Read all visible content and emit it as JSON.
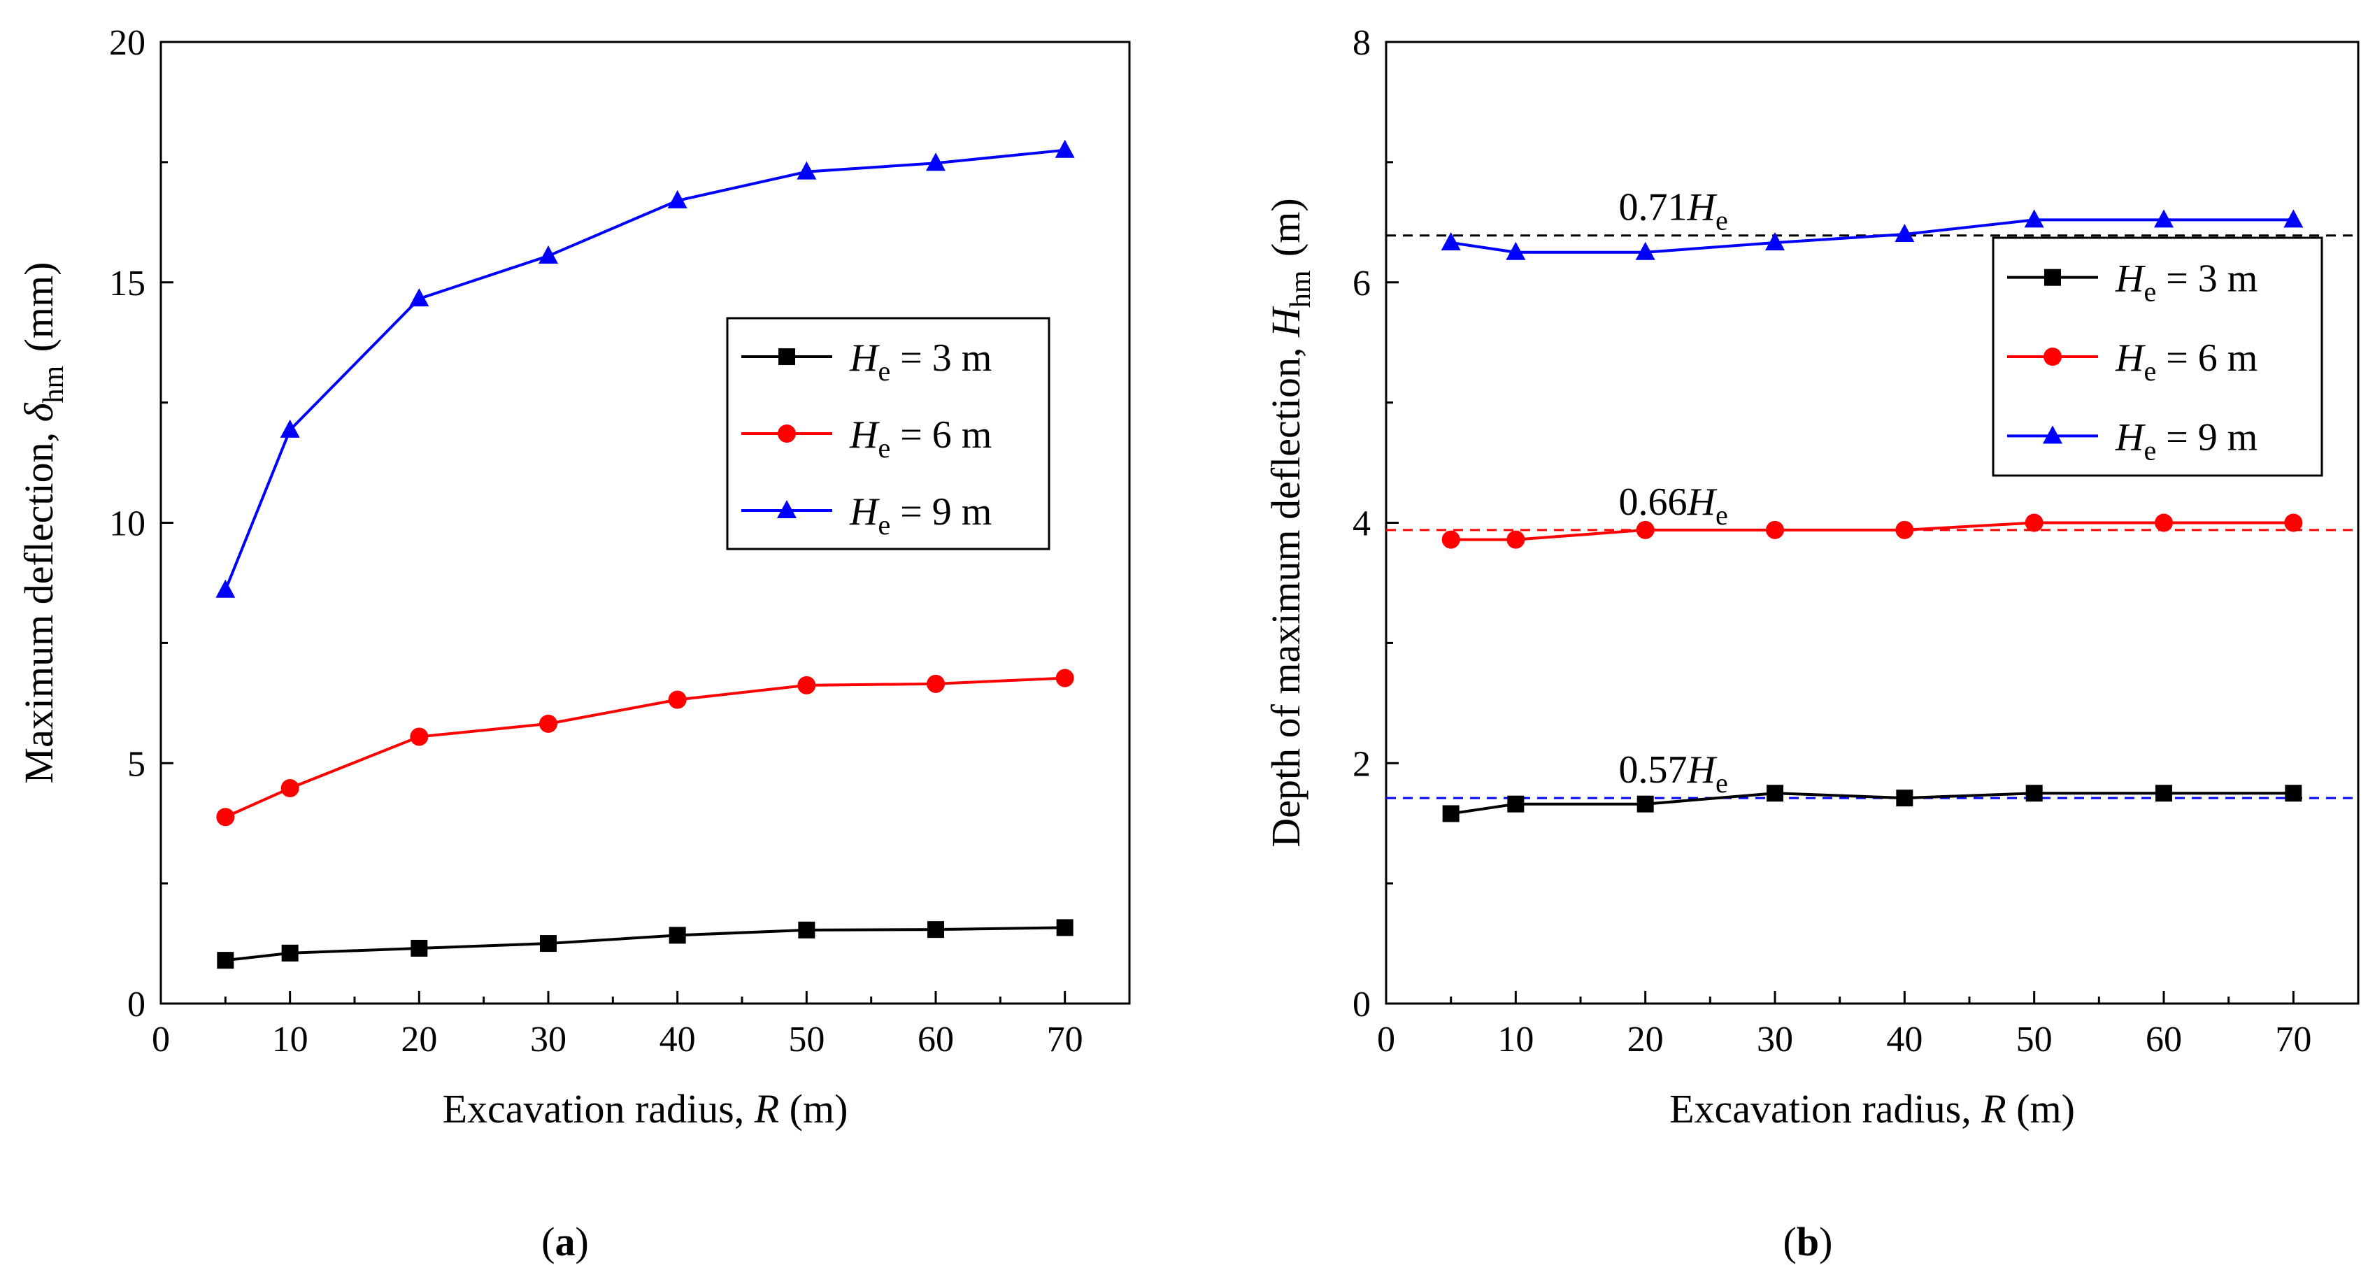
{
  "panel_labels": {
    "a": "(a)",
    "b": "(b)"
  },
  "chart_data": [
    {
      "type": "line",
      "panel": "a",
      "x": [
        5,
        10,
        20,
        30,
        40,
        50,
        60,
        70
      ],
      "xlim": [
        0,
        75
      ],
      "ylim": [
        0,
        20
      ],
      "xticks": [
        0,
        10,
        20,
        30,
        40,
        50,
        60,
        70
      ],
      "yticks": [
        0,
        5,
        10,
        15,
        20
      ],
      "xlabel": {
        "text": "Excavation radius, ",
        "var": "R",
        "unit": " (m)"
      },
      "ylabel": {
        "text": "Maximum deflection, ",
        "var": "δ",
        "sub": "hm",
        "unit": " (mm)"
      },
      "legend": {
        "position": "center-right"
      },
      "series": [
        {
          "name": "He = 3 m",
          "var": "H",
          "sub": "e",
          "eq": " = 3 m",
          "color": "#000000",
          "marker": "square",
          "values": [
            0.9,
            1.05,
            1.15,
            1.25,
            1.42,
            1.53,
            1.54,
            1.58
          ]
        },
        {
          "name": "He = 6 m",
          "var": "H",
          "sub": "e",
          "eq": " = 6 m",
          "color": "#ff0000",
          "marker": "circle",
          "values": [
            3.88,
            4.48,
            5.55,
            5.82,
            6.32,
            6.62,
            6.65,
            6.77
          ]
        },
        {
          "name": "He = 9 m",
          "var": "H",
          "sub": "e",
          "eq": " = 9 m",
          "color": "#0000ff",
          "marker": "triangle",
          "values": [
            8.6,
            11.93,
            14.66,
            15.55,
            16.7,
            17.3,
            17.48,
            17.75
          ]
        }
      ]
    },
    {
      "type": "line",
      "panel": "b",
      "x": [
        5,
        10,
        20,
        30,
        40,
        50,
        60,
        70
      ],
      "xlim": [
        0,
        75
      ],
      "ylim": [
        0,
        8
      ],
      "xticks": [
        0,
        10,
        20,
        30,
        40,
        50,
        60,
        70
      ],
      "yticks": [
        0,
        2,
        4,
        6,
        8
      ],
      "xlabel": {
        "text": "Excavation radius, ",
        "var": "R",
        "unit": " (m)"
      },
      "ylabel": {
        "text": "Depth of maximum deflection, ",
        "var": "H",
        "sub": "hm",
        "unit": " (m)"
      },
      "legend": {
        "position": "top-right"
      },
      "series": [
        {
          "name": "He = 3 m",
          "var": "H",
          "sub": "e",
          "eq": " = 3 m",
          "color": "#000000",
          "marker": "square",
          "values": [
            1.58,
            1.66,
            1.66,
            1.75,
            1.71,
            1.75,
            1.75,
            1.75
          ]
        },
        {
          "name": "He = 6 m",
          "var": "H",
          "sub": "e",
          "eq": " = 6 m",
          "color": "#ff0000",
          "marker": "circle",
          "values": [
            3.86,
            3.86,
            3.94,
            3.94,
            3.94,
            4.0,
            4.0,
            4.0
          ]
        },
        {
          "name": "He = 9 m",
          "var": "H",
          "sub": "e",
          "eq": " = 9 m",
          "color": "#0000ff",
          "marker": "triangle",
          "values": [
            6.33,
            6.25,
            6.25,
            6.33,
            6.4,
            6.52,
            6.52,
            6.52
          ]
        }
      ],
      "reference_lines": [
        {
          "y": 6.39,
          "color": "#000000",
          "label": "0.71",
          "var": "H",
          "sub": "e",
          "label_x": 20
        },
        {
          "y": 3.94,
          "color": "#ff0000",
          "label": "0.66",
          "var": "H",
          "sub": "e",
          "label_x": 20
        },
        {
          "y": 1.71,
          "color": "#0000ff",
          "label": "0.57",
          "var": "H",
          "sub": "e",
          "label_x": 20
        }
      ]
    }
  ]
}
